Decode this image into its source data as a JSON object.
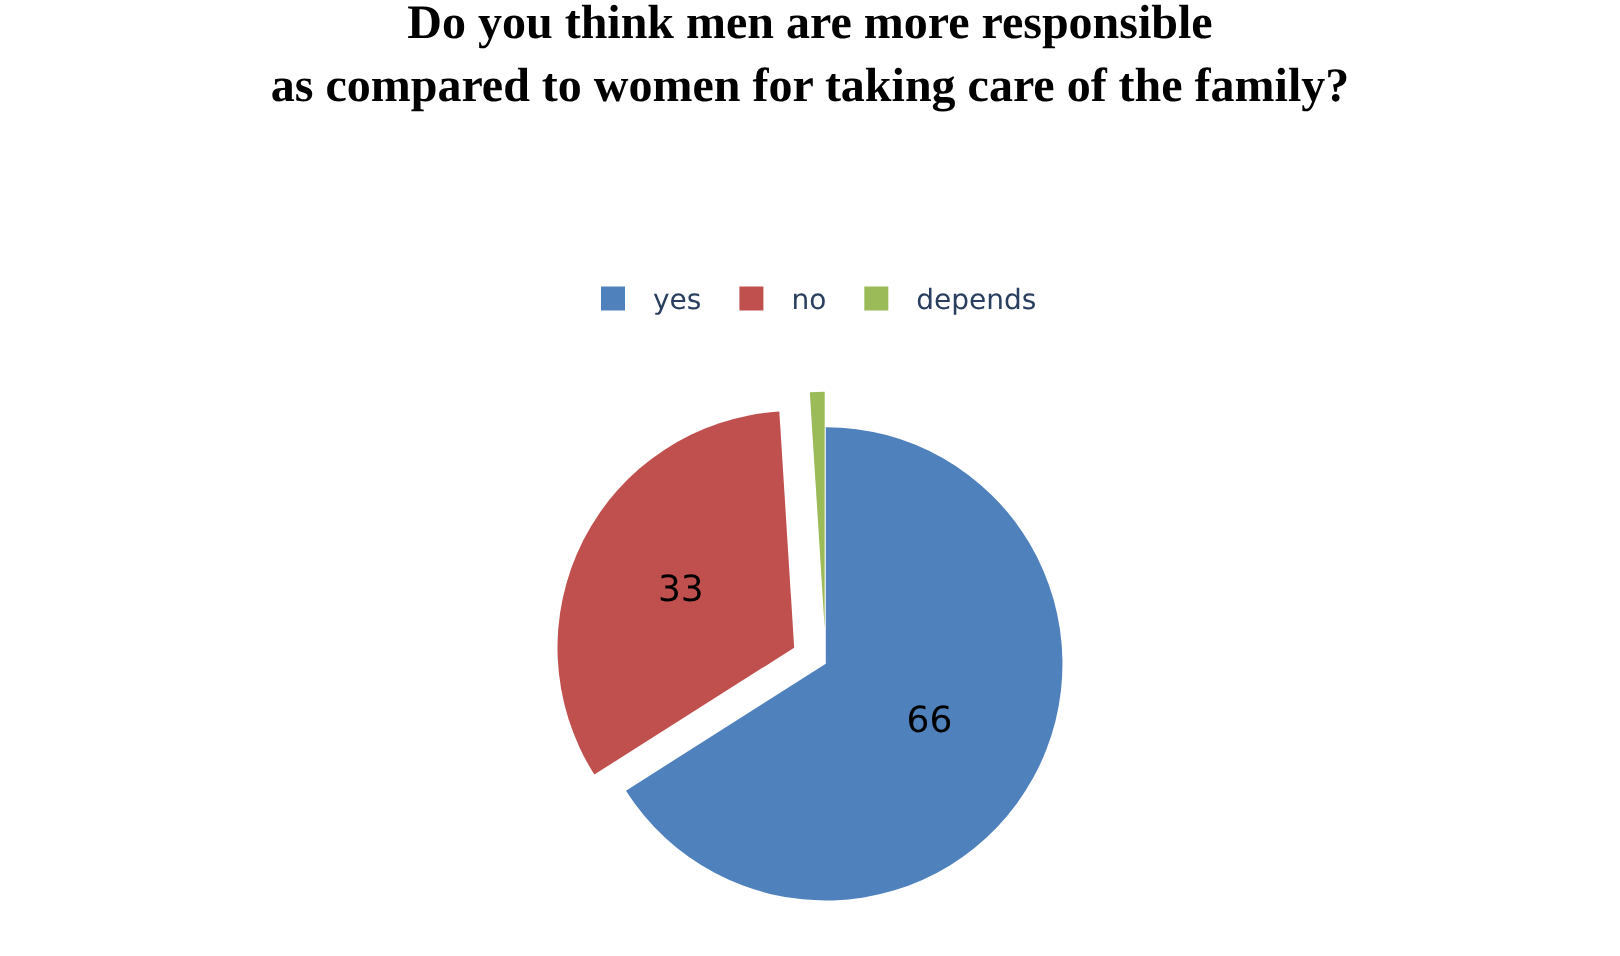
{
  "chart_data": {
    "type": "pie",
    "title": "Do you think men are more responsible as compared to women for taking care of the family?",
    "categories": [
      "yes",
      "no",
      "depends"
    ],
    "values": [
      66,
      33,
      1
    ],
    "value_labels": [
      "66",
      "33",
      null
    ],
    "colors": [
      "#4f81bd",
      "#c0504d",
      "#9bbb59"
    ],
    "legend": "top"
  }
}
